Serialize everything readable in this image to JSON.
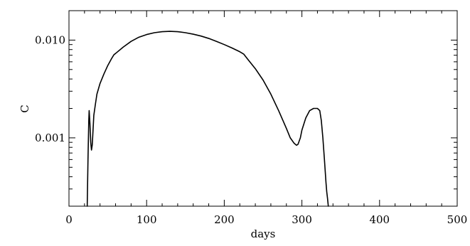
{
  "chart_data": {
    "type": "line",
    "title": "",
    "xlabel": "days",
    "ylabel": "C",
    "xlim": [
      0,
      500
    ],
    "ylim": [
      0.0002,
      0.02
    ],
    "yscale": "log",
    "grid": false,
    "x_ticks": [
      0,
      100,
      200,
      300,
      400,
      500
    ],
    "x_tick_labels": [
      "0",
      "100",
      "200",
      "300",
      "400",
      "500"
    ],
    "y_ticks": [
      0.001,
      0.01
    ],
    "y_tick_labels": [
      "0.001",
      "0.010"
    ],
    "series": [
      {
        "x": [
          23.5,
          24.5,
          25.5,
          26,
          27,
          28,
          29,
          30,
          31,
          32,
          34,
          36,
          40,
          45,
          50,
          55,
          58,
          60,
          70,
          80,
          90,
          100,
          110,
          120,
          130,
          140,
          150,
          160,
          170,
          180,
          190,
          200,
          210,
          220,
          225,
          230,
          240,
          250,
          260,
          270,
          280,
          285,
          290,
          293,
          295,
          298,
          300,
          305,
          310,
          315,
          320,
          323,
          325,
          327,
          329,
          331,
          332,
          333,
          334
        ],
        "y": [
          0.0002,
          0.0006,
          0.0015,
          0.0019,
          0.0014,
          0.0009,
          0.00075,
          0.00085,
          0.0012,
          0.0017,
          0.0022,
          0.0028,
          0.0036,
          0.0045,
          0.0055,
          0.0065,
          0.0071,
          0.0073,
          0.0085,
          0.0097,
          0.0107,
          0.0114,
          0.0119,
          0.0122,
          0.0123,
          0.0122,
          0.0119,
          0.0115,
          0.011,
          0.0104,
          0.0097,
          0.009,
          0.0083,
          0.0076,
          0.0072,
          0.0064,
          0.0051,
          0.0039,
          0.0028,
          0.0019,
          0.00125,
          0.001,
          0.00088,
          0.00084,
          0.00086,
          0.001,
          0.0012,
          0.0016,
          0.0019,
          0.002,
          0.002,
          0.0019,
          0.0015,
          0.001,
          0.0006,
          0.00035,
          0.00028,
          0.00024,
          0.0002
        ]
      }
    ]
  }
}
